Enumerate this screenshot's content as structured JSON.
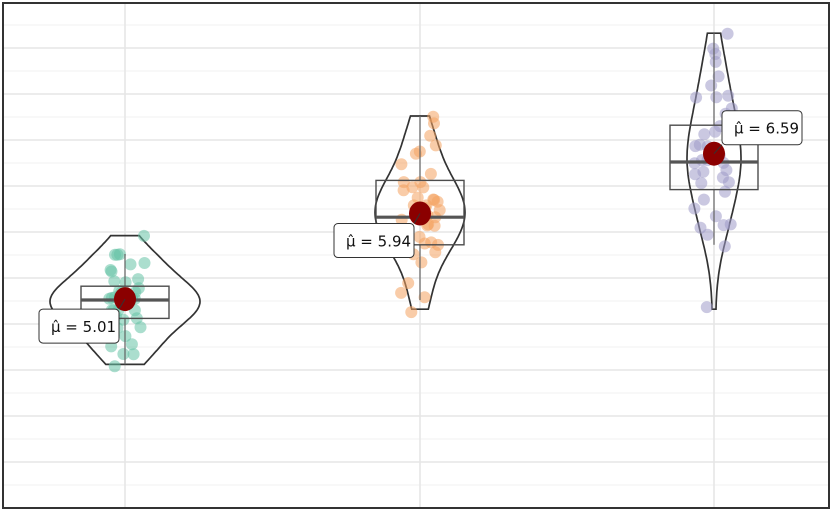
{
  "chart_data": {
    "type": "violin",
    "title": "",
    "xlabel": "",
    "ylabel": "",
    "grid": true,
    "ylim": [
      3.6,
      7.9
    ],
    "groups": [
      {
        "color": "#66c2a5",
        "mean": 5.01,
        "mean_label": "5.01",
        "median": 5.0,
        "q1": 4.8,
        "q3": 5.15,
        "whisker_low": 4.3,
        "whisker_high": 5.5,
        "points": [
          4.3,
          4.4,
          4.4,
          4.5,
          4.5,
          4.6,
          4.6,
          4.7,
          4.7,
          4.8,
          4.8,
          4.8,
          4.8,
          4.9,
          4.9,
          4.9,
          4.9,
          5.0,
          5.0,
          5.0,
          5.0,
          5.0,
          5.0,
          5.1,
          5.1,
          5.1,
          5.1,
          5.2,
          5.2,
          5.2,
          5.3,
          5.3,
          5.4,
          5.4,
          5.5,
          5.5,
          5.5,
          5.7
        ]
      },
      {
        "color": "#f4a261",
        "mean": 5.94,
        "mean_label": "5.94",
        "median": 5.9,
        "q1": 5.6,
        "q3": 6.3,
        "whisker_low": 5.0,
        "whisker_high": 7.0,
        "points": [
          4.9,
          5.0,
          5.1,
          5.2,
          5.4,
          5.5,
          5.5,
          5.6,
          5.6,
          5.6,
          5.7,
          5.7,
          5.8,
          5.8,
          5.8,
          5.8,
          5.9,
          5.9,
          5.9,
          6.0,
          6.0,
          6.0,
          6.0,
          6.1,
          6.1,
          6.1,
          6.1,
          6.2,
          6.2,
          6.2,
          6.3,
          6.3,
          6.4,
          6.5,
          6.6,
          6.6,
          6.7,
          6.8,
          6.9,
          7.0
        ]
      },
      {
        "color": "#9e9ac8",
        "mean": 6.59,
        "mean_label": "6.59",
        "median": 6.5,
        "q1": 6.2,
        "q3": 6.9,
        "whisker_low": 5.6,
        "whisker_high": 7.9,
        "points": [
          4.9,
          5.6,
          5.7,
          5.8,
          5.8,
          5.8,
          5.9,
          6.0,
          6.1,
          6.2,
          6.3,
          6.3,
          6.3,
          6.4,
          6.4,
          6.4,
          6.5,
          6.5,
          6.5,
          6.5,
          6.6,
          6.7,
          6.7,
          6.7,
          6.8,
          6.8,
          6.9,
          6.9,
          7.0,
          7.1,
          7.2,
          7.2,
          7.2,
          7.3,
          7.4,
          7.6,
          7.7,
          7.7,
          7.9
        ]
      }
    ]
  }
}
